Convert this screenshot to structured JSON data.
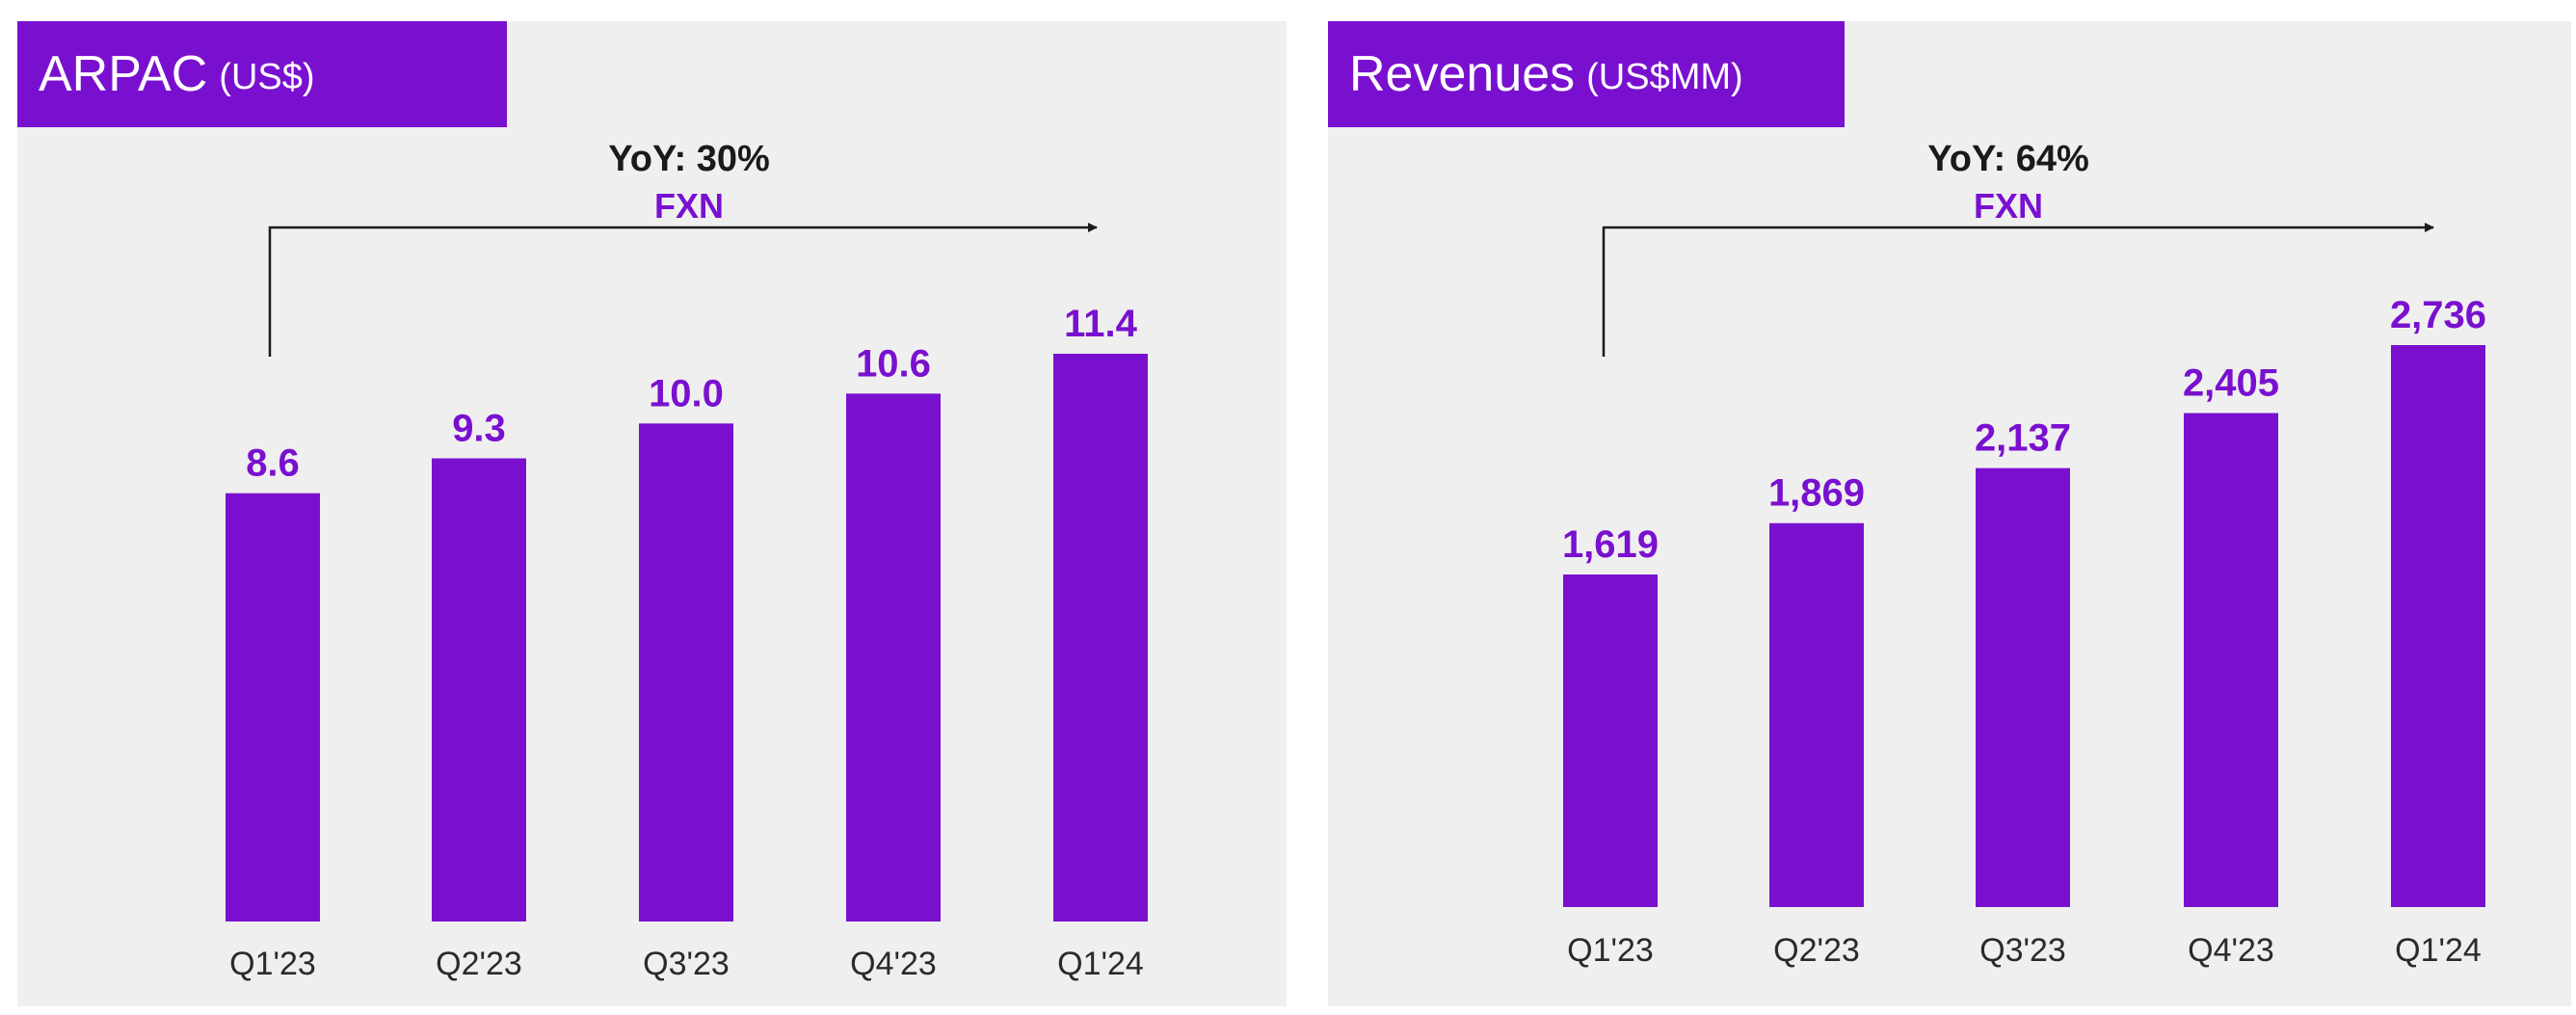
{
  "colors": {
    "accent": "#7a10cf",
    "bar": "#7a10cf",
    "panel_bg": "#efefef",
    "annotation_text": "#1a1a1a",
    "arrow": "#1a1a1a"
  },
  "chart_data": [
    {
      "type": "bar",
      "title": "ARPAC",
      "unit": "(US$)",
      "categories": [
        "Q1'23",
        "Q2'23",
        "Q3'23",
        "Q4'23",
        "Q1'24"
      ],
      "values": [
        8.6,
        9.3,
        10.0,
        10.6,
        11.4
      ],
      "value_labels": [
        "8.6",
        "9.3",
        "10.0",
        "10.6",
        "11.4"
      ],
      "annotation": {
        "yoy": "YoY: 30%",
        "basis": "FXN"
      },
      "xlabel": "",
      "ylabel": "",
      "ylim": [
        0,
        11.4
      ],
      "grid": false,
      "legend": "none"
    },
    {
      "type": "bar",
      "title": "Revenues",
      "unit": "(US$MM)",
      "categories": [
        "Q1'23",
        "Q2'23",
        "Q3'23",
        "Q4'23",
        "Q1'24"
      ],
      "values": [
        1619,
        1869,
        2137,
        2405,
        2736
      ],
      "value_labels": [
        "1,619",
        "1,869",
        "2,137",
        "2,405",
        "2,736"
      ],
      "annotation": {
        "yoy": "YoY: 64%",
        "basis": "FXN"
      },
      "xlabel": "",
      "ylabel": "",
      "ylim": [
        0,
        2736
      ],
      "grid": false,
      "legend": "none"
    }
  ]
}
